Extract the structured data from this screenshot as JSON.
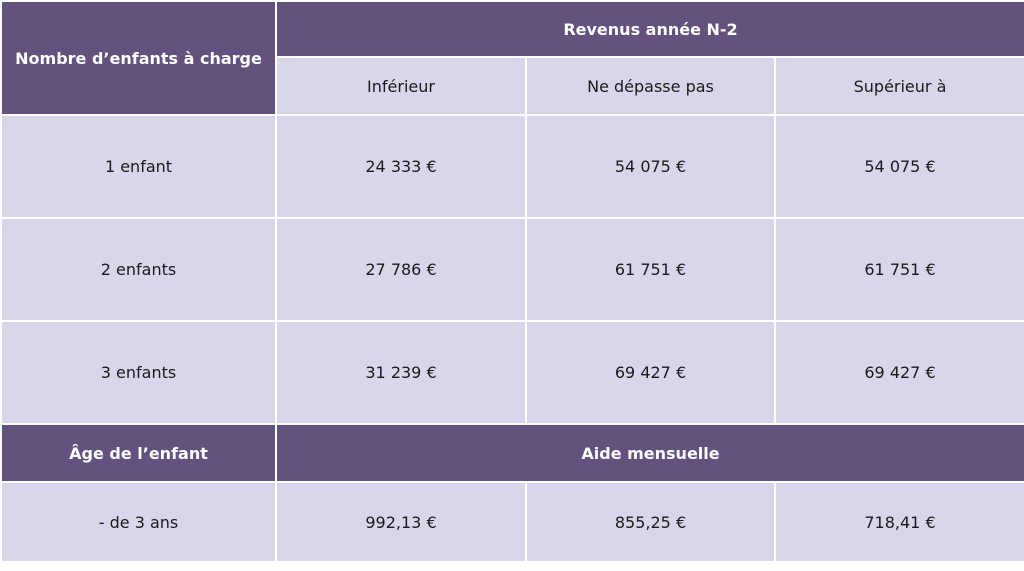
{
  "header": {
    "children_label": "Nombre d’enfants à charge",
    "income_label": "Revenus année N-2",
    "columns": [
      "Inférieur",
      "Ne dépasse pas",
      "Supérieur à"
    ]
  },
  "rows": [
    {
      "label": "1 enfant",
      "values": [
        "24 333 €",
        "54 075 €",
        "54 075 €"
      ]
    },
    {
      "label": "2 enfants",
      "values": [
        "27 786 €",
        "61 751 €",
        "61 751 €"
      ]
    },
    {
      "label": "3 enfants",
      "values": [
        "31 239 €",
        "69 427 €",
        "69 427 €"
      ]
    }
  ],
  "aid_header": {
    "age_label": "Âge de l’enfant",
    "aid_label": "Aide mensuelle"
  },
  "aid_row": {
    "label": "- de 3 ans",
    "values": [
      "992,13 €",
      "855,25 €",
      "718,41 €"
    ]
  }
}
